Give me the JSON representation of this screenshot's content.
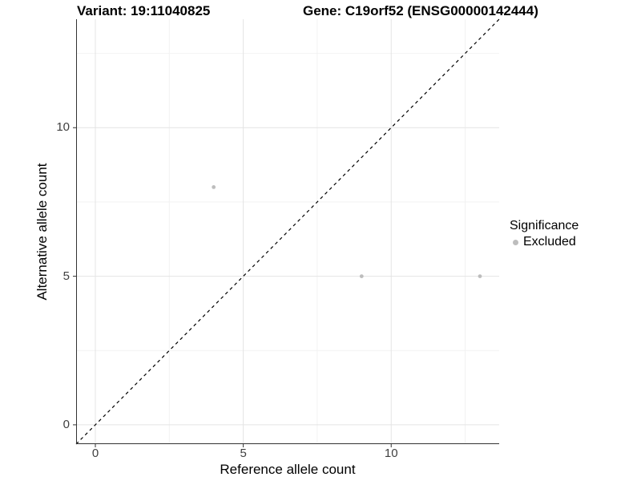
{
  "chart_data": {
    "type": "scatter",
    "titles": {
      "left": "Variant: 19:11040825",
      "right": "Gene: C19orf52 (ENSG00000142444)"
    },
    "xlabel": "Reference allele count",
    "ylabel": "Alternative allele count",
    "xlim": [
      -0.65,
      13.65
    ],
    "ylim": [
      -0.65,
      13.65
    ],
    "x_ticks": [
      0,
      5,
      10
    ],
    "y_ticks": [
      0,
      5,
      10
    ],
    "x_minor_ticks": [
      2.5,
      7.5,
      12.5
    ],
    "y_minor_ticks": [
      2.5,
      7.5,
      12.5
    ],
    "grid": "major and minor gridlines on white background",
    "reference_line": {
      "type": "identity y=x",
      "style": "dashed",
      "color": "#000000"
    },
    "series": [
      {
        "name": "Excluded",
        "color": "#bdbdbd",
        "points": [
          [
            4,
            8
          ],
          [
            9,
            5
          ],
          [
            13,
            5
          ]
        ]
      }
    ],
    "legend": {
      "title": "Significance",
      "position": "right",
      "entries": [
        {
          "label": "Excluded",
          "color": "#bdbdbd"
        }
      ]
    },
    "colors": {
      "axis": "#333333",
      "grid_major": "#e4e4e4",
      "grid_minor": "#f2f2f2",
      "tick_label": "#404040"
    }
  }
}
